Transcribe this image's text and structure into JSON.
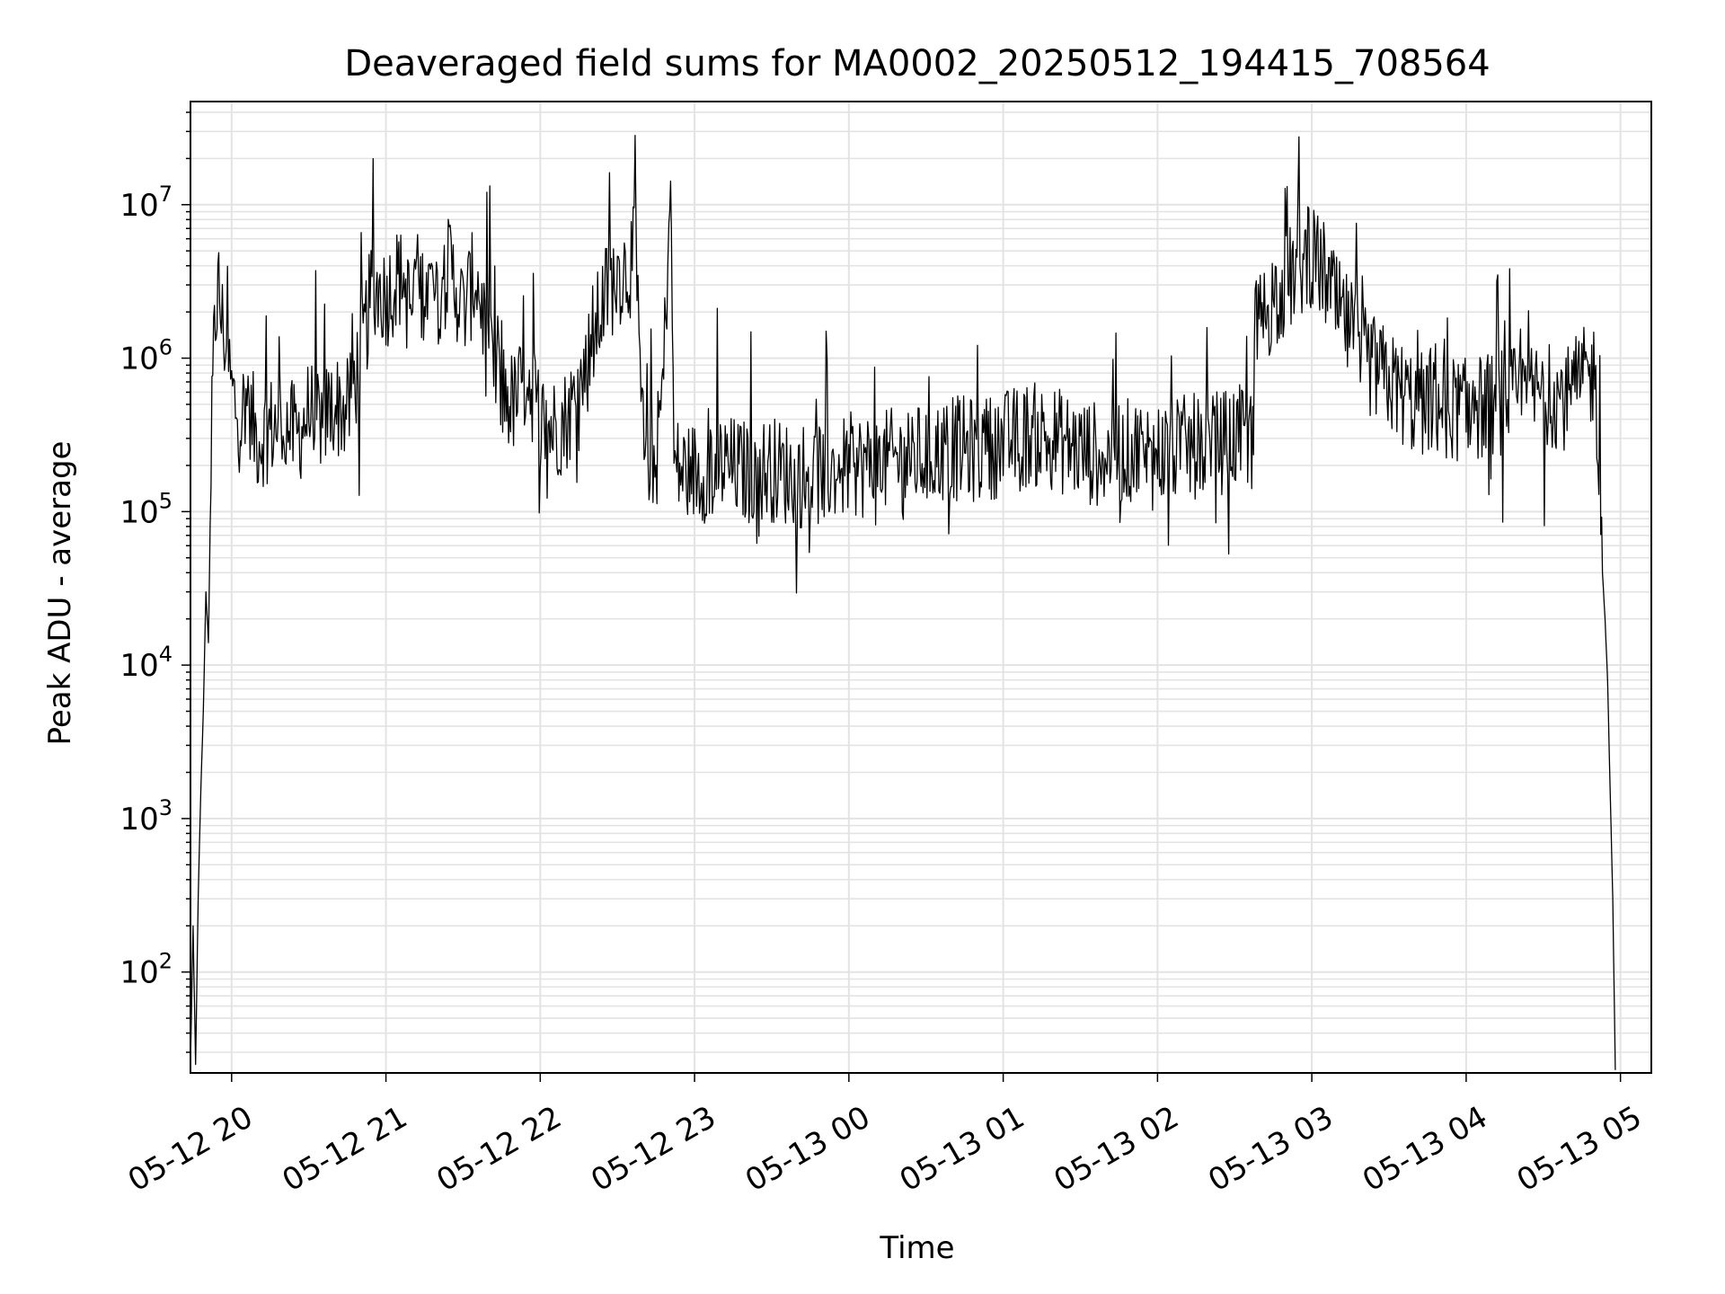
{
  "chart_data": {
    "type": "line",
    "title": "Deaveraged field sums for MA0002_20250512_194415_708564",
    "xlabel": "Time",
    "ylabel": "Peak ADU - average",
    "yscale": "log",
    "xlim": [
      "2025-05-12 19:44",
      "2025-05-13 05:12"
    ],
    "ylim": [
      22,
      47000000
    ],
    "grid": true,
    "legend": "none",
    "x_ticks": [
      {
        "t": "2025-05-12 20:00",
        "label": "05-12 20"
      },
      {
        "t": "2025-05-12 21:00",
        "label": "05-12 21"
      },
      {
        "t": "2025-05-12 22:00",
        "label": "05-12 22"
      },
      {
        "t": "2025-05-12 23:00",
        "label": "05-12 23"
      },
      {
        "t": "2025-05-13 00:00",
        "label": "05-13 00"
      },
      {
        "t": "2025-05-13 01:00",
        "label": "05-13 01"
      },
      {
        "t": "2025-05-13 02:00",
        "label": "05-13 02"
      },
      {
        "t": "2025-05-13 03:00",
        "label": "05-13 03"
      },
      {
        "t": "2025-05-13 04:00",
        "label": "05-13 04"
      },
      {
        "t": "2025-05-13 05:00",
        "label": "05-13 05"
      }
    ],
    "y_ticks": [
      {
        "value": 100,
        "base": "10",
        "exp": "2"
      },
      {
        "value": 1000,
        "base": "10",
        "exp": "3"
      },
      {
        "value": 10000,
        "base": "10",
        "exp": "4"
      },
      {
        "value": 100000,
        "base": "10",
        "exp": "5"
      },
      {
        "value": 1000000,
        "base": "10",
        "exp": "6"
      },
      {
        "value": 10000000,
        "base": "10",
        "exp": "7"
      }
    ],
    "series": [
      {
        "color": "#000000",
        "note_points": "approximate envelope of a dense noisy trace; [time, ADU]",
        "points": [
          [
            "2025-05-12 19:44",
            25
          ],
          [
            "2025-05-12 19:45",
            200
          ],
          [
            "2025-05-12 19:46",
            25
          ],
          [
            "2025-05-12 19:47",
            300
          ],
          [
            "2025-05-12 19:48",
            1500
          ],
          [
            "2025-05-12 19:49",
            5000
          ],
          [
            "2025-05-12 19:50",
            30000
          ],
          [
            "2025-05-12 19:51",
            14000
          ],
          [
            "2025-05-12 19:52",
            200000
          ],
          [
            "2025-05-12 19:53",
            1000000
          ],
          [
            "2025-05-12 19:54",
            2200000
          ],
          [
            "2025-05-12 19:55",
            2800000
          ],
          [
            "2025-05-12 19:56",
            1800000
          ],
          [
            "2025-05-12 19:58",
            1200000
          ],
          [
            "2025-05-12 20:00",
            600000
          ],
          [
            "2025-05-12 20:03",
            400000
          ],
          [
            "2025-05-12 20:06",
            500000
          ],
          [
            "2025-05-12 20:10",
            300000
          ],
          [
            "2025-05-12 20:15",
            350000
          ],
          [
            "2025-05-12 20:20",
            400000
          ],
          [
            "2025-05-12 20:25",
            300000
          ],
          [
            "2025-05-12 20:30",
            450000
          ],
          [
            "2025-05-12 20:35",
            400000
          ],
          [
            "2025-05-12 20:40",
            500000
          ],
          [
            "2025-05-12 20:45",
            450000
          ],
          [
            "2025-05-12 20:50",
            1000000
          ],
          [
            "2025-05-12 20:55",
            3000000
          ],
          [
            "2025-05-12 21:00",
            2500000
          ],
          [
            "2025-05-12 21:05",
            3500000
          ],
          [
            "2025-05-12 21:10",
            2000000
          ],
          [
            "2025-05-12 21:15",
            3000000
          ],
          [
            "2025-05-12 21:20",
            2500000
          ],
          [
            "2025-05-12 21:25",
            4000000
          ],
          [
            "2025-05-12 21:30",
            2000000
          ],
          [
            "2025-05-12 21:35",
            3500000
          ],
          [
            "2025-05-12 21:40",
            1200000
          ],
          [
            "2025-05-12 21:45",
            600000
          ],
          [
            "2025-05-12 21:50",
            500000
          ],
          [
            "2025-05-12 21:55",
            800000
          ],
          [
            "2025-05-12 22:00",
            400000
          ],
          [
            "2025-05-12 22:05",
            350000
          ],
          [
            "2025-05-12 22:10",
            400000
          ],
          [
            "2025-05-12 22:15",
            600000
          ],
          [
            "2025-05-12 22:20",
            1200000
          ],
          [
            "2025-05-12 22:25",
            2500000
          ],
          [
            "2025-05-12 22:30",
            3500000
          ],
          [
            "2025-05-12 22:35",
            4000000
          ],
          [
            "2025-05-12 22:38",
            5000000
          ],
          [
            "2025-05-12 22:40",
            300000
          ],
          [
            "2025-05-12 22:45",
            200000
          ],
          [
            "2025-05-12 22:48",
            800000
          ],
          [
            "2025-05-12 22:50",
            8000000
          ],
          [
            "2025-05-12 22:51",
            7000000
          ],
          [
            "2025-05-12 22:52",
            200000
          ],
          [
            "2025-05-12 22:55",
            180000
          ],
          [
            "2025-05-12 23:00",
            180000
          ],
          [
            "2025-05-12 23:10",
            200000
          ],
          [
            "2025-05-12 23:20",
            180000
          ],
          [
            "2025-05-12 23:30",
            190000
          ],
          [
            "2025-05-12 23:40",
            170000
          ],
          [
            "2025-05-12 23:50",
            180000
          ],
          [
            "2025-05-13 00:00",
            200000
          ],
          [
            "2025-05-13 00:10",
            200000
          ],
          [
            "2025-05-13 00:20",
            220000
          ],
          [
            "2025-05-13 00:30",
            230000
          ],
          [
            "2025-05-13 00:40",
            260000
          ],
          [
            "2025-05-13 00:50",
            250000
          ],
          [
            "2025-05-13 01:00",
            280000
          ],
          [
            "2025-05-13 01:10",
            320000
          ],
          [
            "2025-05-13 01:20",
            300000
          ],
          [
            "2025-05-13 01:30",
            250000
          ],
          [
            "2025-05-13 01:40",
            230000
          ],
          [
            "2025-05-13 01:50",
            250000
          ],
          [
            "2025-05-13 02:00",
            240000
          ],
          [
            "2025-05-13 02:10",
            260000
          ],
          [
            "2025-05-13 02:20",
            270000
          ],
          [
            "2025-05-13 02:30",
            300000
          ],
          [
            "2025-05-13 02:37",
            300000
          ],
          [
            "2025-05-13 02:38",
            1500000
          ],
          [
            "2025-05-13 02:45",
            2500000
          ],
          [
            "2025-05-13 02:50",
            3000000
          ],
          [
            "2025-05-13 02:55",
            4000000
          ],
          [
            "2025-05-13 03:00",
            4500000
          ],
          [
            "2025-05-13 03:05",
            3500000
          ],
          [
            "2025-05-13 03:10",
            2000000
          ],
          [
            "2025-05-13 03:15",
            1500000
          ],
          [
            "2025-05-13 03:20",
            1000000
          ],
          [
            "2025-05-13 03:30",
            700000
          ],
          [
            "2025-05-13 03:40",
            500000
          ],
          [
            "2025-05-13 03:50",
            500000
          ],
          [
            "2025-05-13 04:00",
            450000
          ],
          [
            "2025-05-13 04:10",
            500000
          ],
          [
            "2025-05-13 04:20",
            550000
          ],
          [
            "2025-05-13 04:30",
            600000
          ],
          [
            "2025-05-13 04:40",
            550000
          ],
          [
            "2025-05-13 04:45",
            700000
          ],
          [
            "2025-05-13 04:50",
            800000
          ],
          [
            "2025-05-13 04:52",
            200000
          ],
          [
            "2025-05-13 04:53",
            40000
          ],
          [
            "2025-05-13 04:54",
            20000
          ],
          [
            "2025-05-13 04:55",
            8000
          ],
          [
            "2025-05-13 04:56",
            1500
          ],
          [
            "2025-05-13 04:57",
            300
          ],
          [
            "2025-05-13 04:58",
            23
          ]
        ]
      }
    ]
  }
}
